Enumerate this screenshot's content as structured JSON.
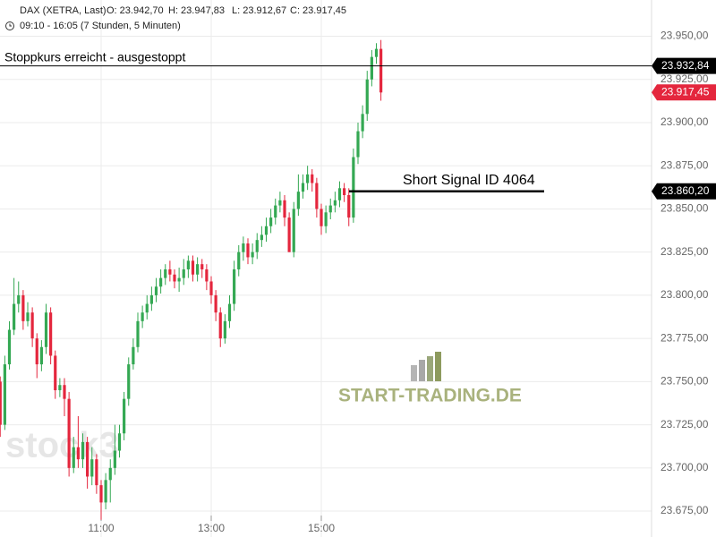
{
  "chart_data": {
    "type": "candlestick",
    "header": {
      "symbol": "DAX (XETRA, Last)",
      "open": "O: 23.942,70",
      "high": "H: 23.947,83",
      "low": "L: 23.912,67",
      "close": "C: 23.917,45",
      "session": "09:10 - 16:05 (7 Stunden, 5 Minuten)"
    },
    "categories": [
      null,
      null,
      null,
      null,
      null,
      null,
      null,
      null,
      null,
      null,
      null,
      null,
      null,
      null,
      null,
      null,
      null,
      null,
      null,
      null,
      null,
      null,
      "11:00",
      null,
      null,
      null,
      null,
      null,
      null,
      null,
      null,
      null,
      null,
      null,
      null,
      null,
      null,
      null,
      null,
      null,
      null,
      null,
      null,
      null,
      null,
      null,
      "13:00",
      null,
      null,
      null,
      null,
      null,
      null,
      null,
      null,
      null,
      null,
      null,
      null,
      null,
      null,
      null,
      null,
      null,
      null,
      null,
      null,
      null,
      null,
      null,
      "15:00",
      null,
      null,
      null,
      null,
      null,
      null,
      null,
      null,
      null,
      null,
      null,
      null,
      null
    ],
    "open": [
      23750,
      23725,
      23760,
      23780,
      23795,
      23800,
      23785,
      23790,
      23775,
      23760,
      23770,
      23790,
      23765,
      23745,
      23748,
      23740,
      23700,
      23712,
      23705,
      23715,
      23695,
      23705,
      23690,
      23680,
      23693,
      23700,
      23710,
      23720,
      23740,
      23760,
      23770,
      23785,
      23790,
      23795,
      23800,
      23805,
      23810,
      23815,
      23812,
      23808,
      23810,
      23815,
      23820,
      23812,
      23818,
      23815,
      23808,
      23800,
      23790,
      23775,
      23785,
      23795,
      23815,
      23825,
      23830,
      23822,
      23825,
      23832,
      23835,
      23840,
      23845,
      23852,
      23855,
      23845,
      23825,
      23850,
      23860,
      23865,
      23870,
      23865,
      23850,
      23840,
      23848,
      23852,
      23855,
      23862,
      23858,
      23845,
      23880,
      23895,
      23905,
      23925,
      23938,
      23942.7
    ],
    "high": [
      23753,
      23765,
      23785,
      23810,
      23808,
      23803,
      23796,
      23793,
      23778,
      23774,
      23795,
      23793,
      23768,
      23752,
      23752,
      23744,
      23718,
      23730,
      23720,
      23718,
      23712,
      23708,
      23693,
      23697,
      23705,
      23725,
      23725,
      23744,
      23764,
      23775,
      23790,
      23794,
      23800,
      23805,
      23810,
      23815,
      23818,
      23820,
      23815,
      23816,
      23821,
      23823,
      23823,
      23822,
      23821,
      23818,
      23811,
      23803,
      23793,
      23789,
      23800,
      23820,
      23829,
      23834,
      23833,
      23830,
      23836,
      23840,
      23845,
      23850,
      23856,
      23860,
      23858,
      23848,
      23854,
      23870,
      23870,
      23875,
      23873,
      23868,
      23853,
      23852,
      23856,
      23860,
      23866,
      23865,
      23862,
      23885,
      23900,
      23910,
      23930,
      23942,
      23946,
      23947.83
    ],
    "low": [
      23718,
      23722,
      23757,
      23777,
      23790,
      23780,
      23782,
      23770,
      23752,
      23756,
      23766,
      23760,
      23740,
      23741,
      23730,
      23695,
      23697,
      23700,
      23700,
      23688,
      23690,
      23685,
      23670,
      23676,
      23680,
      23696,
      23706,
      23716,
      23736,
      23757,
      23767,
      23781,
      23786,
      23791,
      23796,
      23801,
      23806,
      23808,
      23804,
      23802,
      23806,
      23810,
      23808,
      23808,
      23810,
      23803,
      23795,
      23785,
      23770,
      23772,
      23781,
      23791,
      23811,
      23820,
      23818,
      23818,
      23821,
      23828,
      23831,
      23836,
      23841,
      23848,
      23840,
      23825,
      23822,
      23846,
      23856,
      23861,
      23860,
      23845,
      23835,
      23836,
      23844,
      23848,
      23851,
      23854,
      23840,
      23842,
      23876,
      23891,
      23901,
      23921,
      23934,
      23912.67
    ],
    "close": [
      23725,
      23760,
      23780,
      23795,
      23800,
      23785,
      23790,
      23775,
      23760,
      23770,
      23790,
      23765,
      23745,
      23748,
      23740,
      23700,
      23712,
      23705,
      23715,
      23695,
      23705,
      23690,
      23680,
      23693,
      23700,
      23710,
      23720,
      23740,
      23760,
      23770,
      23785,
      23790,
      23795,
      23800,
      23805,
      23810,
      23815,
      23812,
      23808,
      23810,
      23815,
      23820,
      23812,
      23818,
      23815,
      23808,
      23800,
      23790,
      23775,
      23785,
      23795,
      23815,
      23825,
      23830,
      23822,
      23825,
      23832,
      23835,
      23840,
      23845,
      23852,
      23855,
      23845,
      23825,
      23850,
      23860,
      23865,
      23870,
      23865,
      23850,
      23840,
      23848,
      23852,
      23855,
      23862,
      23858,
      23845,
      23880,
      23895,
      23905,
      23925,
      23938,
      23942.7,
      23917.45
    ],
    "up_color": "#34a853",
    "down_color": "#e4263d",
    "ylim": [
      23660,
      23971
    ],
    "yticks": [
      {
        "value": 23675,
        "label": "23.675,00"
      },
      {
        "value": 23700,
        "label": "23.700,00"
      },
      {
        "value": 23725,
        "label": "23.725,00"
      },
      {
        "value": 23750,
        "label": "23.750,00"
      },
      {
        "value": 23775,
        "label": "23.775,00"
      },
      {
        "value": 23800,
        "label": "23.800,00"
      },
      {
        "value": 23825,
        "label": "23.825,00"
      },
      {
        "value": 23850,
        "label": "23.850,00"
      },
      {
        "value": 23875,
        "label": "23.875,00"
      },
      {
        "value": 23900,
        "label": "23.900,00"
      },
      {
        "value": 23925,
        "label": "23.925,00"
      },
      {
        "value": 23950,
        "label": "23.950,00"
      }
    ],
    "grid": true,
    "levels": [
      {
        "value": 23932.84,
        "label": "23.932,84",
        "text": "Stoppkurs erreicht - ausgestoppt"
      },
      {
        "value": 23860.2,
        "label": "23.860,20",
        "text": "Short Signal  ID 4064"
      }
    ],
    "last_price_label": "23.917,45",
    "watermarks": [
      "START-TRADING.DE",
      "stock3"
    ]
  }
}
